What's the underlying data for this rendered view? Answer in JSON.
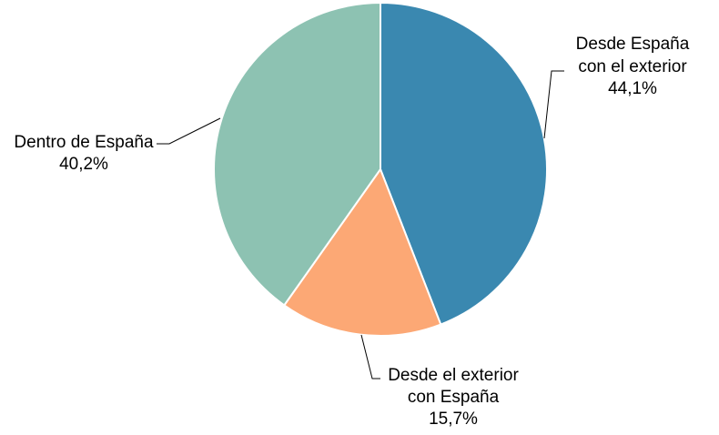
{
  "chart_data": {
    "type": "pie",
    "title": "",
    "slices": [
      {
        "label_lines": [
          "Desde España",
          "con el exterior"
        ],
        "value": 44.1,
        "value_label": "44,1%",
        "color": "#3a88b0"
      },
      {
        "label_lines": [
          "Desde el exterior",
          "con España"
        ],
        "value": 15.7,
        "value_label": "15,7%",
        "color": "#fca875"
      },
      {
        "label_lines": [
          "Dentro de España"
        ],
        "value": 40.2,
        "value_label": "40,2%",
        "color": "#8dc2b2"
      }
    ],
    "start_angle_deg": 0,
    "direction": "clockwise",
    "legend": "none",
    "labels": "outside-with-leader-lines"
  }
}
